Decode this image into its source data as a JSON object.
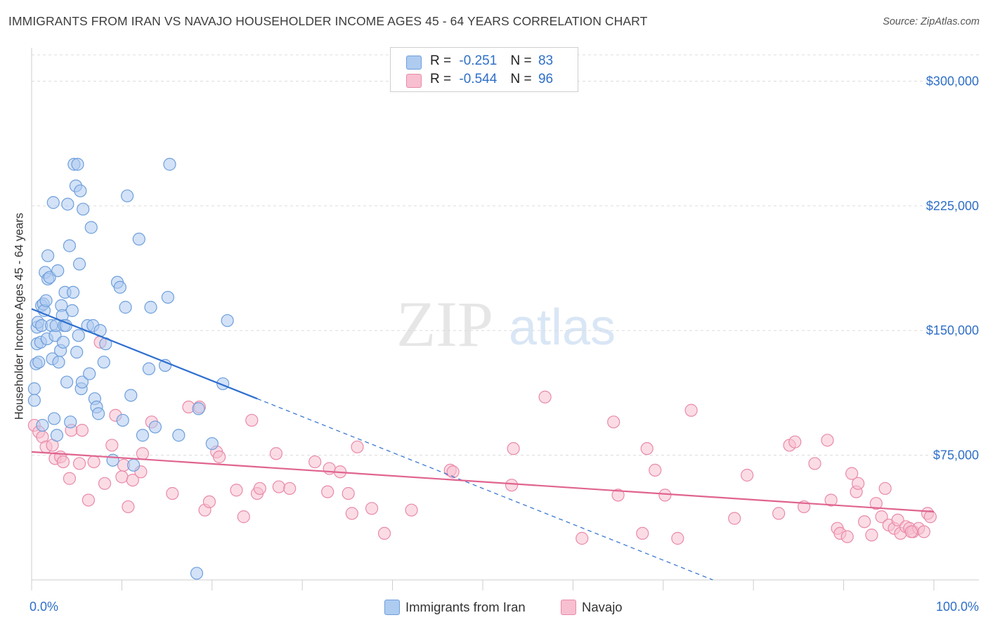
{
  "header": {
    "title": "IMMIGRANTS FROM IRAN VS NAVAJO HOUSEHOLDER INCOME AGES 45 - 64 YEARS CORRELATION CHART",
    "source": "Source: ZipAtlas.com"
  },
  "stats": [
    {
      "r_label": "R =",
      "r_value": "-0.251",
      "n_label": "N =",
      "n_value": "83"
    },
    {
      "r_label": "R =",
      "r_value": "-0.544",
      "n_label": "N =",
      "n_value": "96"
    }
  ],
  "legend": {
    "series1": "Immigrants from Iran",
    "series2": "Navajo"
  },
  "colors": {
    "iran_fill": "#aecbf0",
    "iran_stroke": "#6e9fdc",
    "iran_line": "#2e6fcf",
    "navajo_fill": "#f7bfd0",
    "navajo_stroke": "#e98aa9",
    "navajo_line": "#e0648f",
    "tick_text": "#2f6fc8",
    "grid": "#dcdcdc",
    "watermark": "#e6e6e6"
  },
  "chart_data": {
    "type": "scatter",
    "title": "IMMIGRANTS FROM IRAN VS NAVAJO HOUSEHOLDER INCOME AGES 45 - 64 YEARS CORRELATION CHART",
    "xlabel": "",
    "ylabel": "Householder Income Ages 45 - 64 years",
    "xlim": [
      0,
      100
    ],
    "ylim": [
      0,
      315000
    ],
    "x_tick_labels": [
      "0.0%",
      "100.0%"
    ],
    "y_ticks": [
      75000,
      150000,
      225000,
      300000
    ],
    "y_tick_labels": [
      "$75,000",
      "$150,000",
      "$225,000",
      "$300,000"
    ],
    "grid": true,
    "legend_position": "bottom",
    "watermark": {
      "part1": "ZIP",
      "part2": "atlas"
    },
    "series": [
      {
        "name": "Immigrants from Iran",
        "trend": {
          "x0": 0,
          "y0": 163000,
          "x1": 25,
          "y1": 109000,
          "dashed_to_x": 75.5,
          "dashed_to_y": 0
        },
        "points": [
          [
            0.3,
            115000
          ],
          [
            0.3,
            108000
          ],
          [
            0.5,
            130000
          ],
          [
            0.6,
            152000
          ],
          [
            0.6,
            142000
          ],
          [
            0.7,
            155000
          ],
          [
            0.8,
            131000
          ],
          [
            1,
            143000
          ],
          [
            1.1,
            153000
          ],
          [
            1.1,
            165000
          ],
          [
            1.3,
            166000
          ],
          [
            1.4,
            162000
          ],
          [
            1.5,
            185000
          ],
          [
            1.6,
            168000
          ],
          [
            1.7,
            145000
          ],
          [
            1.8,
            181000
          ],
          [
            1.8,
            195000
          ],
          [
            2,
            182000
          ],
          [
            2.2,
            153000
          ],
          [
            2.3,
            133000
          ],
          [
            2.4,
            227000
          ],
          [
            2.6,
            147000
          ],
          [
            2.7,
            153000
          ],
          [
            2.8,
            87000
          ],
          [
            2.9,
            186000
          ],
          [
            3,
            131000
          ],
          [
            3.2,
            138000
          ],
          [
            3.3,
            165000
          ],
          [
            3.4,
            159000
          ],
          [
            3.6,
            153000
          ],
          [
            3.7,
            173000
          ],
          [
            3.8,
            153000
          ],
          [
            3.9,
            119000
          ],
          [
            4,
            226000
          ],
          [
            4.2,
            201000
          ],
          [
            4.3,
            95000
          ],
          [
            4.5,
            162000
          ],
          [
            4.6,
            173000
          ],
          [
            4.7,
            250000
          ],
          [
            4.9,
            237000
          ],
          [
            5,
            137000
          ],
          [
            5.1,
            250000
          ],
          [
            5.2,
            147000
          ],
          [
            5.3,
            190000
          ],
          [
            5.4,
            234000
          ],
          [
            5.5,
            115000
          ],
          [
            5.6,
            119000
          ],
          [
            5.7,
            223000
          ],
          [
            6.2,
            153000
          ],
          [
            6.4,
            124000
          ],
          [
            6.6,
            212000
          ],
          [
            6.8,
            153000
          ],
          [
            7,
            109000
          ],
          [
            7.2,
            104000
          ],
          [
            7.4,
            100000
          ],
          [
            7.6,
            150000
          ],
          [
            8,
            131000
          ],
          [
            8.2,
            142000
          ],
          [
            9,
            72000
          ],
          [
            9.5,
            179000
          ],
          [
            9.8,
            176000
          ],
          [
            10.1,
            96000
          ],
          [
            10.4,
            164000
          ],
          [
            10.6,
            231000
          ],
          [
            11,
            111000
          ],
          [
            11.3,
            69000
          ],
          [
            11.9,
            205000
          ],
          [
            12.3,
            87000
          ],
          [
            13,
            127000
          ],
          [
            13.2,
            164000
          ],
          [
            13.7,
            92000
          ],
          [
            14.8,
            129000
          ],
          [
            15.1,
            170000
          ],
          [
            15.3,
            250000
          ],
          [
            16.3,
            87000
          ],
          [
            18.5,
            103000
          ],
          [
            20,
            82000
          ],
          [
            21.2,
            118000
          ],
          [
            21.7,
            156000
          ],
          [
            18.3,
            4000
          ],
          [
            2.5,
            97000
          ],
          [
            1.2,
            93000
          ],
          [
            3.5,
            143000
          ]
        ]
      },
      {
        "name": "Navajo",
        "trend": {
          "x0": 0,
          "y0": 77000,
          "x1": 100,
          "y1": 41000
        },
        "points": [
          [
            0.3,
            93000
          ],
          [
            0.8,
            89000
          ],
          [
            1.2,
            86000
          ],
          [
            1.6,
            80000
          ],
          [
            2.3,
            81000
          ],
          [
            2.6,
            73000
          ],
          [
            3.2,
            74000
          ],
          [
            3.5,
            71000
          ],
          [
            4.2,
            61000
          ],
          [
            4.4,
            90000
          ],
          [
            5.3,
            70000
          ],
          [
            5.6,
            90000
          ],
          [
            6.3,
            48000
          ],
          [
            6.9,
            71000
          ],
          [
            7.6,
            143000
          ],
          [
            8.1,
            58000
          ],
          [
            8.9,
            81000
          ],
          [
            9.3,
            99000
          ],
          [
            10.0,
            62000
          ],
          [
            10.2,
            69000
          ],
          [
            10.7,
            44000
          ],
          [
            11.2,
            60000
          ],
          [
            12.3,
            76000
          ],
          [
            12.1,
            65000
          ],
          [
            13.3,
            95000
          ],
          [
            15.6,
            52000
          ],
          [
            17.4,
            104000
          ],
          [
            18.6,
            104000
          ],
          [
            19.2,
            42000
          ],
          [
            19.7,
            47000
          ],
          [
            20.5,
            77000
          ],
          [
            20.8,
            74000
          ],
          [
            22.7,
            54000
          ],
          [
            23.5,
            38000
          ],
          [
            24.4,
            96000
          ],
          [
            25.0,
            52000
          ],
          [
            25.3,
            55000
          ],
          [
            27.1,
            76000
          ],
          [
            27.4,
            56000
          ],
          [
            28.6,
            55000
          ],
          [
            31.4,
            71000
          ],
          [
            32.8,
            53000
          ],
          [
            33.0,
            67000
          ],
          [
            34.2,
            65000
          ],
          [
            35.1,
            52000
          ],
          [
            35.5,
            40000
          ],
          [
            36.1,
            80000
          ],
          [
            37.7,
            43000
          ],
          [
            39.1,
            28000
          ],
          [
            42.1,
            42000
          ],
          [
            46.4,
            66000
          ],
          [
            46.7,
            65000
          ],
          [
            53.2,
            57000
          ],
          [
            53.4,
            79000
          ],
          [
            56.9,
            110000
          ],
          [
            61.0,
            25000
          ],
          [
            64.5,
            95000
          ],
          [
            65.0,
            51000
          ],
          [
            67.7,
            28000
          ],
          [
            68.2,
            79000
          ],
          [
            69.1,
            66000
          ],
          [
            70.2,
            51000
          ],
          [
            71.6,
            25000
          ],
          [
            73.1,
            102000
          ],
          [
            77.9,
            37000
          ],
          [
            79.3,
            63000
          ],
          [
            82.8,
            40000
          ],
          [
            84.0,
            81000
          ],
          [
            84.6,
            83000
          ],
          [
            85.6,
            44000
          ],
          [
            86.8,
            70000
          ],
          [
            88.2,
            84000
          ],
          [
            88.6,
            48000
          ],
          [
            89.3,
            31000
          ],
          [
            89.6,
            28000
          ],
          [
            90.4,
            26000
          ],
          [
            90.9,
            64000
          ],
          [
            91.4,
            53000
          ],
          [
            91.6,
            58000
          ],
          [
            92.3,
            35000
          ],
          [
            93.1,
            27000
          ],
          [
            93.6,
            46000
          ],
          [
            94.2,
            38000
          ],
          [
            94.6,
            55000
          ],
          [
            95.0,
            33000
          ],
          [
            95.6,
            31000
          ],
          [
            96.0,
            36000
          ],
          [
            96.3,
            28000
          ],
          [
            96.9,
            32000
          ],
          [
            97.3,
            31000
          ],
          [
            97.7,
            29000
          ],
          [
            98.3,
            31000
          ],
          [
            98.9,
            29000
          ],
          [
            99.3,
            40000
          ],
          [
            99.6,
            38000
          ],
          [
            97.5,
            29000
          ]
        ]
      }
    ]
  }
}
